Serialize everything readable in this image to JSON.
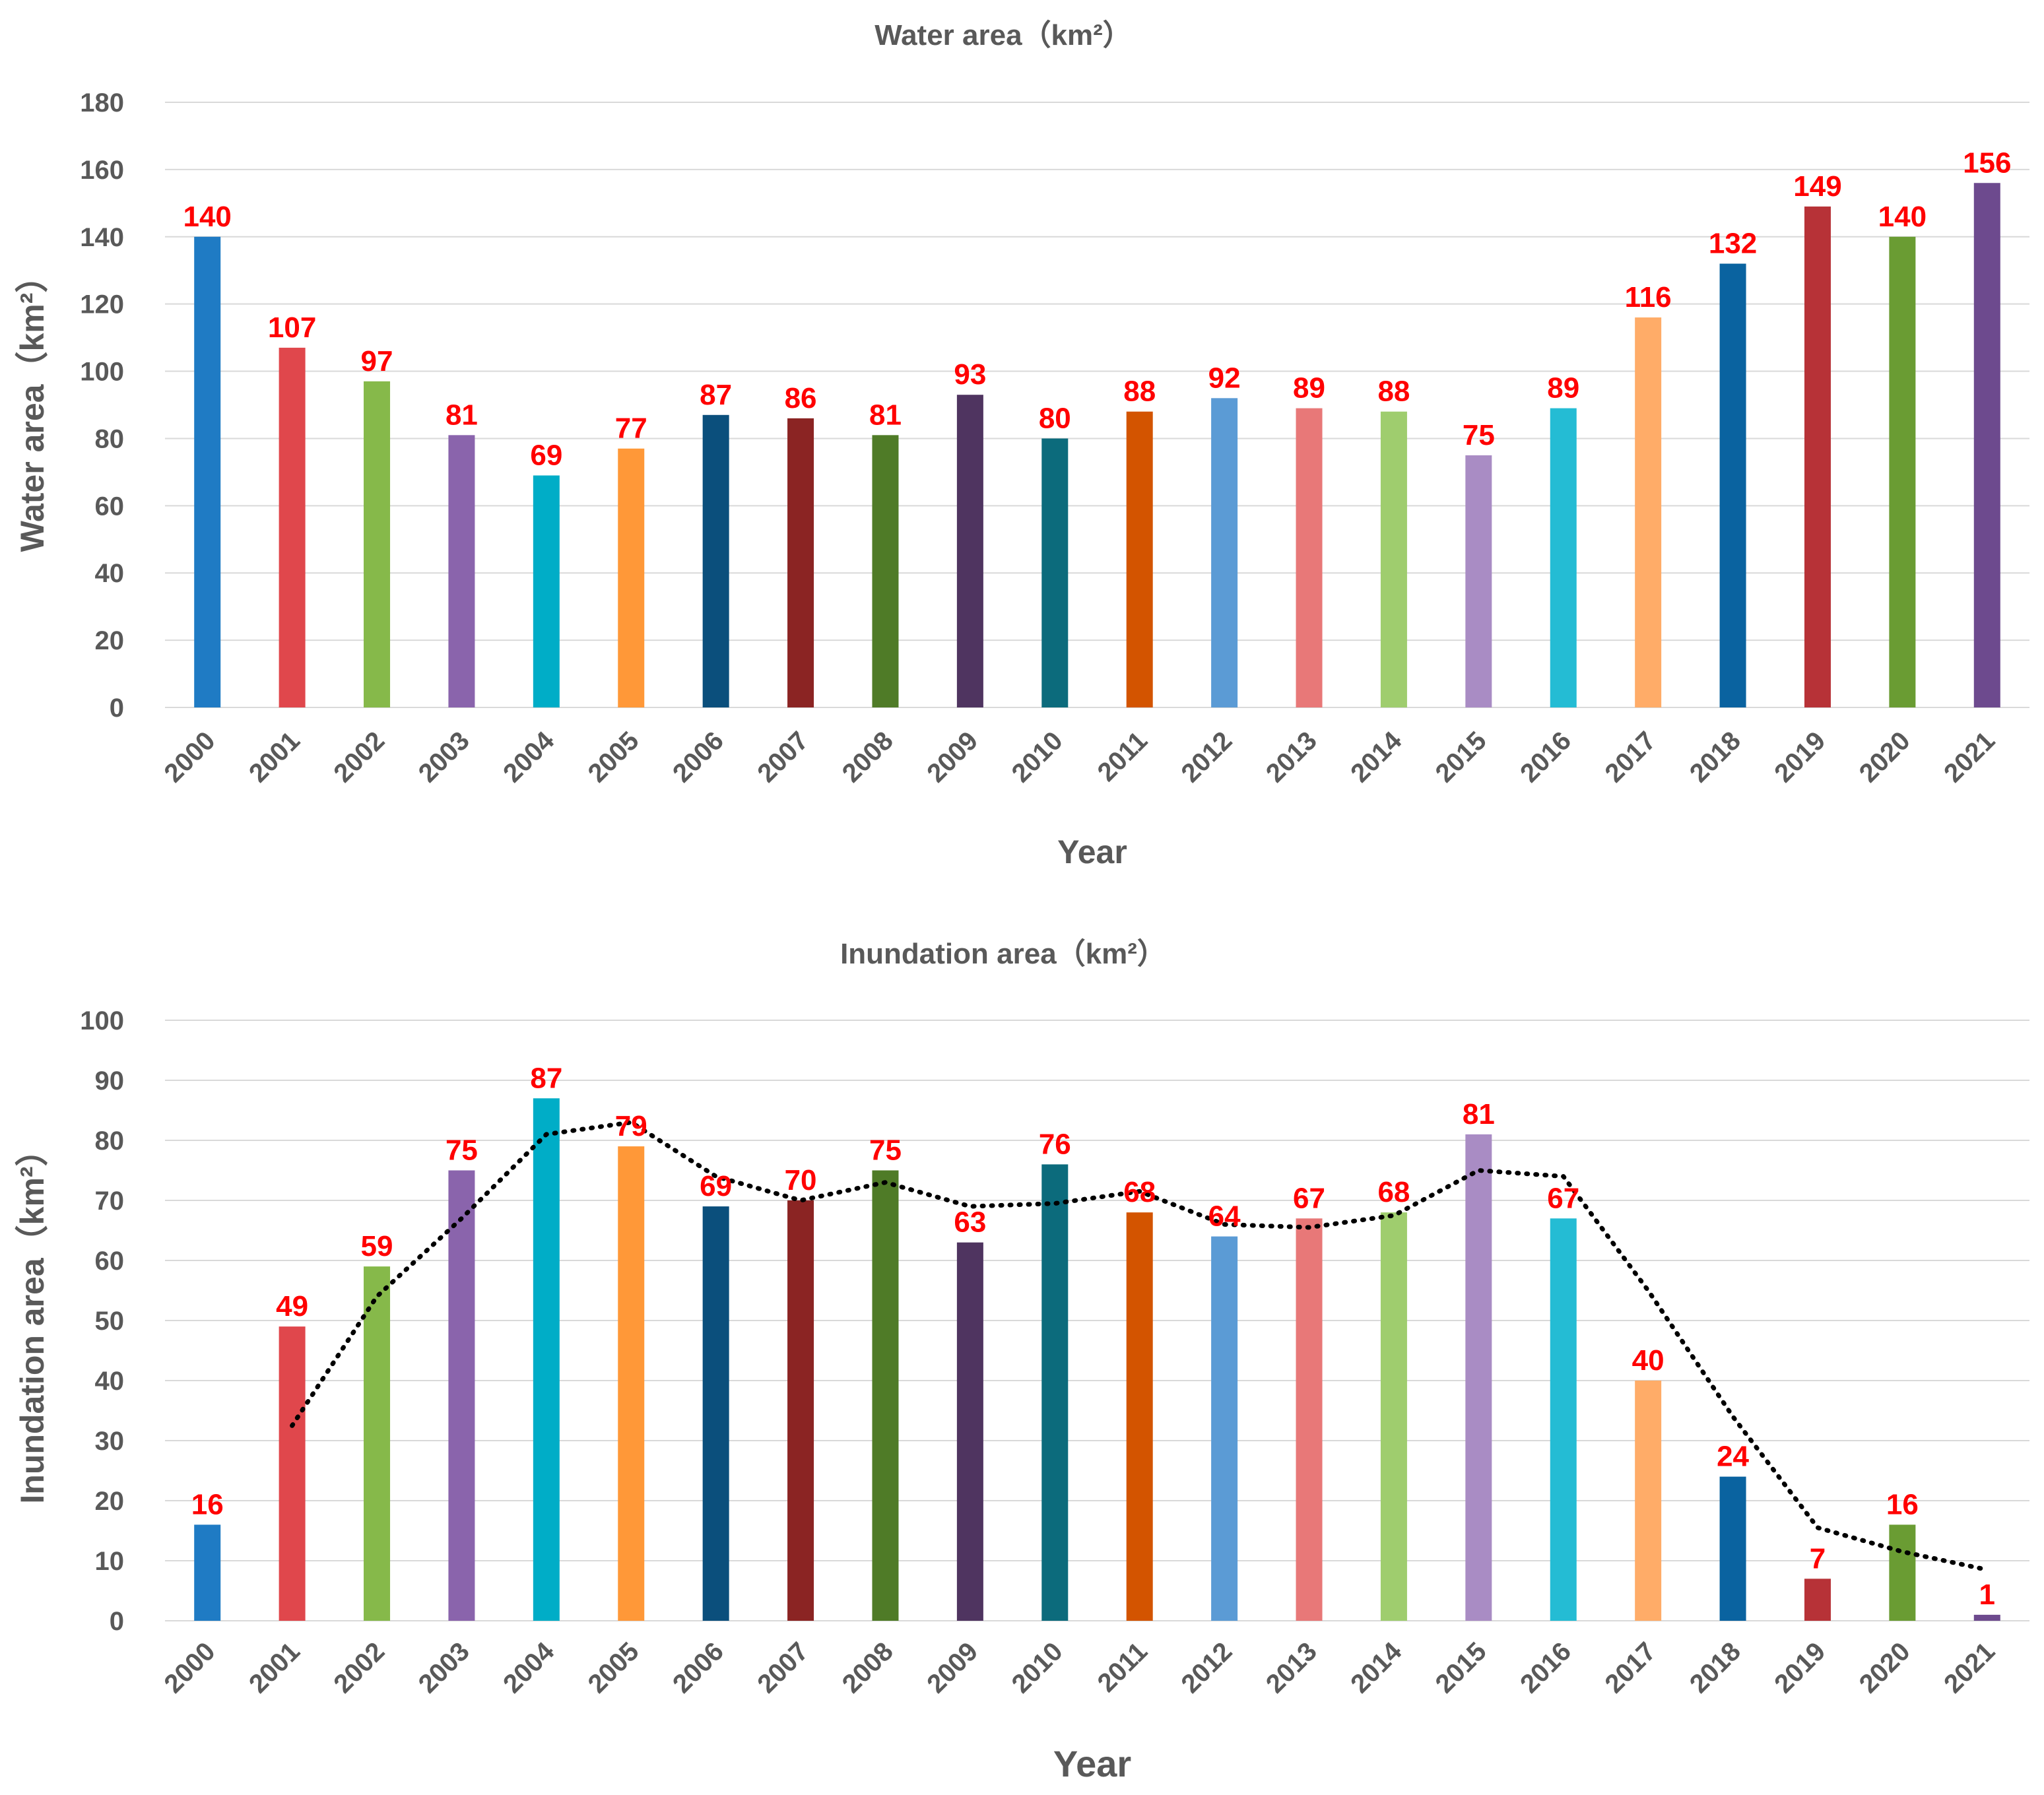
{
  "chart_data": [
    {
      "type": "bar",
      "title": "Water area（km²）",
      "xlabel": "Year",
      "ylabel": "Water area（km²）",
      "ylim": [
        0,
        180
      ],
      "yticks": [
        0,
        20,
        40,
        60,
        80,
        100,
        120,
        140,
        160,
        180
      ],
      "grid": true,
      "categories": [
        "2000",
        "2001",
        "2002",
        "2003",
        "2004",
        "2005",
        "2006",
        "2007",
        "2008",
        "2009",
        "2010",
        "2011",
        "2012",
        "2013",
        "2014",
        "2015",
        "2016",
        "2017",
        "2018",
        "2019",
        "2020",
        "2021"
      ],
      "values": [
        140,
        107,
        97,
        81,
        69,
        77,
        87,
        86,
        81,
        93,
        80,
        88,
        92,
        89,
        88,
        75,
        89,
        116,
        132,
        149,
        140,
        156
      ],
      "colors": [
        "#1f7bc4",
        "#e0474c",
        "#86b94a",
        "#8a64ac",
        "#00adc7",
        "#ff9838",
        "#0b4f7c",
        "#8b2423",
        "#4f7b27",
        "#4f3460",
        "#0c6b7c",
        "#d35400",
        "#5b9bd5",
        "#e87878",
        "#9fcd6e",
        "#a98cc4",
        "#24bcd4",
        "#ffac68",
        "#0a63a0",
        "#b73237",
        "#6a9c33",
        "#6d4a8e"
      ]
    },
    {
      "type": "bar",
      "title": "Inundation area（km²）",
      "xlabel": "Year",
      "ylabel": "Inundation area（km²）",
      "ylim": [
        0,
        100
      ],
      "yticks": [
        0,
        10,
        20,
        30,
        40,
        50,
        60,
        70,
        80,
        90,
        100
      ],
      "grid": true,
      "categories": [
        "2000",
        "2001",
        "2002",
        "2003",
        "2004",
        "2005",
        "2006",
        "2007",
        "2008",
        "2009",
        "2010",
        "2011",
        "2012",
        "2013",
        "2014",
        "2015",
        "2016",
        "2017",
        "2018",
        "2019",
        "2020",
        "2021"
      ],
      "values": [
        16,
        49,
        59,
        75,
        87,
        79,
        69,
        70,
        75,
        63,
        76,
        68,
        64,
        67,
        68,
        81,
        67,
        40,
        24,
        7,
        16,
        1
      ],
      "colors": [
        "#1f7bc4",
        "#e0474c",
        "#86b94a",
        "#8a64ac",
        "#00adc7",
        "#ff9838",
        "#0b4f7c",
        "#8b2423",
        "#4f7b27",
        "#4f3460",
        "#0c6b7c",
        "#d35400",
        "#5b9bd5",
        "#e87878",
        "#9fcd6e",
        "#a98cc4",
        "#24bcd4",
        "#ffac68",
        "#0a63a0",
        "#b73237",
        "#6a9c33",
        "#6d4a8e"
      ],
      "trendline": {
        "style": "dotted",
        "color": "#000000",
        "x": [
          "2001",
          "2002",
          "2003",
          "2004",
          "2005",
          "2006",
          "2007",
          "2008",
          "2009",
          "2010",
          "2011",
          "2012",
          "2013",
          "2014",
          "2015",
          "2016",
          "2017",
          "2018",
          "2019",
          "2020",
          "2021"
        ],
        "values": [
          32.5,
          54,
          67,
          81,
          83,
          74,
          70,
          73,
          69,
          69.5,
          71.5,
          66,
          65.5,
          67.5,
          75,
          74,
          55,
          34,
          15.5,
          11.5,
          8.5
        ]
      }
    }
  ]
}
